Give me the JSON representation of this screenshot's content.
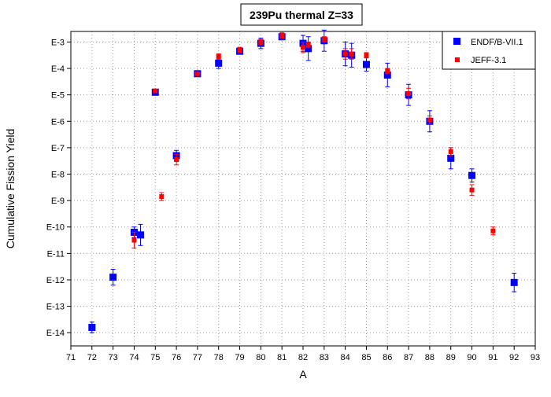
{
  "chart_data": {
    "type": "scatter",
    "title": "239Pu thermal Z=33",
    "xlabel": "A",
    "ylabel": "Cumulative Fission Yield",
    "xlim": [
      71,
      93
    ],
    "ylim_log10": [
      -14.5,
      -2.6
    ],
    "y_scale": "log",
    "grid": true,
    "legend_position": "top-right",
    "x_ticks": [
      71,
      72,
      73,
      74,
      75,
      76,
      77,
      78,
      79,
      80,
      81,
      82,
      83,
      84,
      85,
      86,
      87,
      88,
      89,
      90,
      91,
      92,
      93
    ],
    "y_ticks": [
      {
        "label": "E-3",
        "log10": -3
      },
      {
        "label": "E-4",
        "log10": -4
      },
      {
        "label": "E-5",
        "log10": -5
      },
      {
        "label": "E-6",
        "log10": -6
      },
      {
        "label": "E-7",
        "log10": -7
      },
      {
        "label": "E-8",
        "log10": -8
      },
      {
        "label": "E-9",
        "log10": -9
      },
      {
        "label": "E-10",
        "log10": -10
      },
      {
        "label": "E-11",
        "log10": -11
      },
      {
        "label": "E-12",
        "log10": -12
      },
      {
        "label": "E-13",
        "log10": -13
      },
      {
        "label": "E-14",
        "log10": -14
      }
    ],
    "series": [
      {
        "name": "ENDF/B-VII.1",
        "color": "#0000ff",
        "marker": "square-large",
        "points": [
          {
            "x": 72,
            "log10y": -13.8,
            "err_log10": 0.2
          },
          {
            "x": 73,
            "log10y": -11.9,
            "err_log10": 0.3
          },
          {
            "x": 74,
            "log10y": -10.2,
            "err_log10": 0.2
          },
          {
            "x": 74.3,
            "log10y": -10.3,
            "err_log10": 0.4
          },
          {
            "x": 75,
            "log10y": -4.9,
            "err_log10": 0.05
          },
          {
            "x": 76,
            "log10y": -7.3,
            "err_log10": 0.2
          },
          {
            "x": 77,
            "log10y": -4.2,
            "err_log10": 0.05
          },
          {
            "x": 78,
            "log10y": -3.8,
            "err_log10": 0.2
          },
          {
            "x": 79,
            "log10y": -3.35,
            "err_log10": 0.1
          },
          {
            "x": 80,
            "log10y": -3.05,
            "err_log10": 0.2
          },
          {
            "x": 81,
            "log10y": -2.8,
            "err_log10": 0.1
          },
          {
            "x": 82,
            "log10y": -3.05,
            "err_log10": 0.3
          },
          {
            "x": 82.25,
            "log10y": -3.25,
            "err_log10": 0.45
          },
          {
            "x": 83,
            "log10y": -2.95,
            "err_log10": 0.4
          },
          {
            "x": 84,
            "log10y": -3.45,
            "err_log10": 0.45
          },
          {
            "x": 84.3,
            "log10y": -3.5,
            "err_log10": 0.45
          },
          {
            "x": 85,
            "log10y": -3.85,
            "err_log10": 0.25
          },
          {
            "x": 86,
            "log10y": -4.25,
            "err_log10": 0.45
          },
          {
            "x": 87,
            "log10y": -5.0,
            "err_log10": 0.4
          },
          {
            "x": 88,
            "log10y": -6.0,
            "err_log10": 0.4
          },
          {
            "x": 89,
            "log10y": -7.4,
            "err_log10": 0.4
          },
          {
            "x": 90,
            "log10y": -8.05,
            "err_log10": 0.25
          },
          {
            "x": 92,
            "log10y": -12.1,
            "err_log10": 0.35
          }
        ]
      },
      {
        "name": "JEFF-3.1",
        "color": "#ff0000",
        "marker": "square-small",
        "points": [
          {
            "x": 74,
            "log10y": -10.5,
            "err_log10": 0.3
          },
          {
            "x": 75,
            "log10y": -4.85,
            "err_log10": 0.05
          },
          {
            "x": 75.3,
            "log10y": -8.85,
            "err_log10": 0.15
          },
          {
            "x": 76,
            "log10y": -7.45,
            "err_log10": 0.2
          },
          {
            "x": 77,
            "log10y": -4.2,
            "err_log10": 0.05
          },
          {
            "x": 78,
            "log10y": -3.55,
            "err_log10": 0.1
          },
          {
            "x": 79,
            "log10y": -3.3,
            "err_log10": 0.1
          },
          {
            "x": 80,
            "log10y": -3.0,
            "err_log10": 0.1
          },
          {
            "x": 81,
            "log10y": -2.75,
            "err_log10": 0.1
          },
          {
            "x": 82,
            "log10y": -3.2,
            "err_log10": 0.2
          },
          {
            "x": 82.25,
            "log10y": -3.1,
            "err_log10": 0.1
          },
          {
            "x": 83,
            "log10y": -2.9,
            "err_log10": 0.1
          },
          {
            "x": 84,
            "log10y": -3.45,
            "err_log10": 0.2
          },
          {
            "x": 84.3,
            "log10y": -3.45,
            "err_log10": 0.2
          },
          {
            "x": 85,
            "log10y": -3.5,
            "err_log10": 0.1
          },
          {
            "x": 86,
            "log10y": -4.1,
            "err_log10": 0.1
          },
          {
            "x": 87,
            "log10y": -4.95,
            "err_log10": 0.2
          },
          {
            "x": 88,
            "log10y": -5.95,
            "err_log10": 0.15
          },
          {
            "x": 89,
            "log10y": -7.15,
            "err_log10": 0.15
          },
          {
            "x": 90,
            "log10y": -8.6,
            "err_log10": 0.2
          },
          {
            "x": 91,
            "log10y": -10.15,
            "err_log10": 0.15
          }
        ]
      }
    ]
  }
}
